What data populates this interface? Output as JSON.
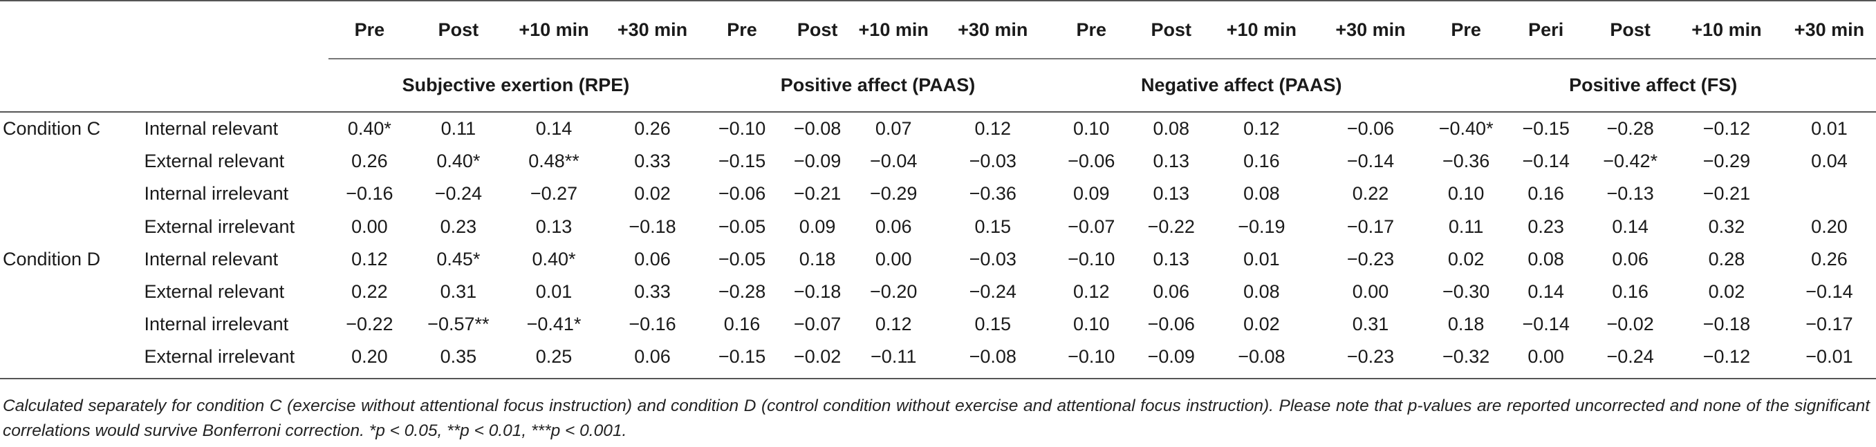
{
  "table": {
    "groups": [
      {
        "label": "Subjective exertion (RPE)",
        "columns": [
          "Pre",
          "Post",
          "+10 min",
          "+30 min"
        ]
      },
      {
        "label": "Positive affect (PAAS)",
        "columns": [
          "Pre",
          "Post",
          "+10 min",
          "+30 min"
        ]
      },
      {
        "label": "Negative affect (PAAS)",
        "columns": [
          "Pre",
          "Post",
          "+10 min",
          "+30 min"
        ]
      },
      {
        "label": "Positive affect (FS)",
        "columns": [
          "Pre",
          "Peri",
          "Post",
          "+10 min",
          "+30 min"
        ]
      }
    ],
    "rows": [
      {
        "condition": "Condition C",
        "variable": "Internal relevant",
        "values": [
          "0.40*",
          "0.11",
          "0.14",
          "0.26",
          "−0.10",
          "−0.08",
          "0.07",
          "0.12",
          "0.10",
          "0.08",
          "0.12",
          "−0.06",
          "−0.40*",
          "−0.15",
          "−0.28",
          "−0.12",
          "0.01"
        ]
      },
      {
        "condition": "",
        "variable": "External relevant",
        "values": [
          "0.26",
          "0.40*",
          "0.48**",
          "0.33",
          "−0.15",
          "−0.09",
          "−0.04",
          "−0.03",
          "−0.06",
          "0.13",
          "0.16",
          "−0.14",
          "−0.36",
          "−0.14",
          "−0.42*",
          "−0.29",
          "0.04"
        ]
      },
      {
        "condition": "",
        "variable": "Internal irrelevant",
        "values": [
          "−0.16",
          "−0.24",
          "−0.27",
          "0.02",
          "−0.06",
          "−0.21",
          "−0.29",
          "−0.36",
          "0.09",
          "0.13",
          "0.08",
          "0.22",
          "0.10",
          "0.16",
          "−0.13",
          "−0.21",
          ""
        ]
      },
      {
        "condition": "",
        "variable": "External irrelevant",
        "values": [
          "0.00",
          "0.23",
          "0.13",
          "−0.18",
          "−0.05",
          "0.09",
          "0.06",
          "0.15",
          "−0.07",
          "−0.22",
          "−0.19",
          "−0.17",
          "0.11",
          "0.23",
          "0.14",
          "0.32",
          "0.20"
        ]
      },
      {
        "condition": "Condition D",
        "variable": "Internal relevant",
        "values": [
          "0.12",
          "0.45*",
          "0.40*",
          "0.06",
          "−0.05",
          "0.18",
          "0.00",
          "−0.03",
          "−0.10",
          "0.13",
          "0.01",
          "−0.23",
          "0.02",
          "0.08",
          "0.06",
          "0.28",
          "0.26"
        ]
      },
      {
        "condition": "",
        "variable": "External relevant",
        "values": [
          "0.22",
          "0.31",
          "0.01",
          "0.33",
          "−0.28",
          "−0.18",
          "−0.20",
          "−0.24",
          "0.12",
          "0.06",
          "0.08",
          "0.00",
          "−0.30",
          "0.14",
          "0.16",
          "0.02",
          "−0.14"
        ]
      },
      {
        "condition": "",
        "variable": "Internal irrelevant",
        "values": [
          "−0.22",
          "−0.57**",
          "−0.41*",
          "−0.16",
          "0.16",
          "−0.07",
          "0.12",
          "0.15",
          "0.10",
          "−0.06",
          "0.02",
          "0.31",
          "0.18",
          "−0.14",
          "−0.02",
          "−0.18",
          "−0.17"
        ]
      },
      {
        "condition": "",
        "variable": "External irrelevant",
        "values": [
          "0.20",
          "0.35",
          "0.25",
          "0.06",
          "−0.15",
          "−0.02",
          "−0.11",
          "−0.08",
          "−0.10",
          "−0.09",
          "−0.08",
          "−0.23",
          "−0.32",
          "0.00",
          "−0.24",
          "−0.12",
          "−0.01"
        ]
      }
    ]
  },
  "footnote": "Calculated separately for condition C (exercise without attentional focus instruction) and condition D (control condition without exercise and attentional focus instruction). Please note that p-values are reported uncorrected and none of the significant correlations would survive Bonferroni correction. *p < 0.05, **p < 0.01, ***p < 0.001."
}
